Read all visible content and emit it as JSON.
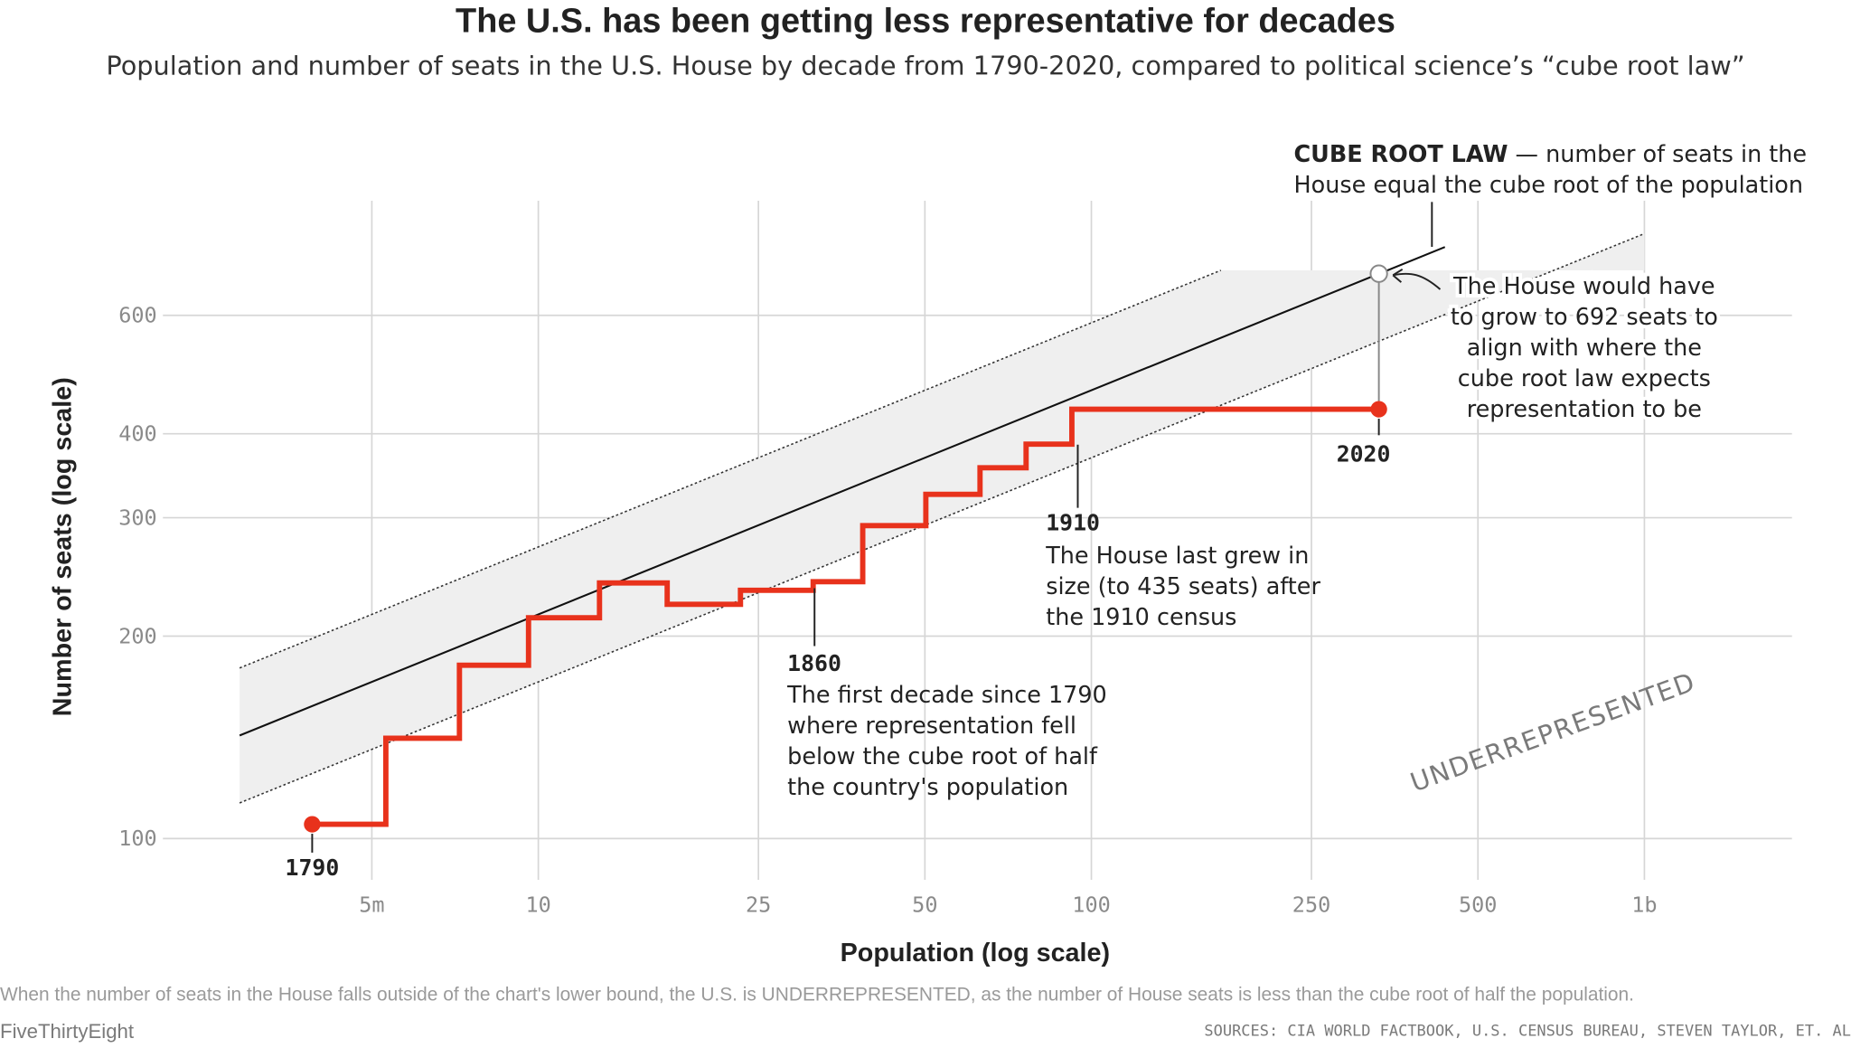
{
  "header": {
    "title": "The U.S. has been getting less representative for decades",
    "subtitle": "Population and number of seats in the U.S. House by decade from 1790-2020, compared to political science’s “cube root law”"
  },
  "chart_data": {
    "type": "line",
    "xlabel": "Population (log scale)",
    "ylabel": "Number of seats (log scale)",
    "x_scale": "log",
    "y_scale": "log",
    "grid": true,
    "x_ticks": [
      {
        "value": 5000000,
        "label": "5m"
      },
      {
        "value": 10000000,
        "label": "10"
      },
      {
        "value": 25000000,
        "label": "25"
      },
      {
        "value": 50000000,
        "label": "50"
      },
      {
        "value": 100000000,
        "label": "100"
      },
      {
        "value": 250000000,
        "label": "250"
      },
      {
        "value": 500000000,
        "label": "500"
      },
      {
        "value": 1000000000,
        "label": "1b"
      }
    ],
    "y_ticks": [
      {
        "value": 100,
        "label": "100"
      },
      {
        "value": 200,
        "label": "200"
      },
      {
        "value": 300,
        "label": "300"
      },
      {
        "value": 400,
        "label": "400"
      },
      {
        "value": 600,
        "label": "600"
      }
    ],
    "series": [
      {
        "x": [
          3900000,
          5300000,
          7200000,
          9600000,
          12900000,
          17100000,
          23200000,
          31400000,
          38600000,
          50200000,
          62900000,
          76200000,
          92200000,
          331000000
        ],
        "y": [
          105,
          141,
          181,
          213,
          240,
          223,
          234,
          241,
          292,
          325,
          356,
          386,
          435,
          435
        ],
        "color": "#e8321c"
      }
    ],
    "cube_root_law": {
      "color": "#111111",
      "band_lower_ratio": 0.7937,
      "band_upper_ratio": 1.26,
      "band_color": "#efefef"
    },
    "highlights": [
      {
        "x": 3900000,
        "y": 105,
        "label": "1790"
      },
      {
        "x": 331000000,
        "y": 435,
        "label": "2020"
      },
      {
        "x": 331000000,
        "y": 692,
        "hollow": true
      }
    ],
    "annotations": {
      "cube_root": {
        "bold": "CUBE ROOT LAW",
        "line1_rest": " — number of seats in the",
        "line2": "House equal the cube root of the population"
      },
      "target": [
        "The House would have",
        "to grow to 692 seats to",
        "align with where the",
        "cube root law expects",
        "representation to be"
      ],
      "y1910": {
        "year": "1910",
        "lines": [
          "The House last grew in",
          "size (to 435 seats) after",
          "the 1910 census"
        ]
      },
      "y1860": {
        "year": "1860",
        "lines": [
          "The first decade since 1790",
          "where representation fell",
          "below the cube root of half",
          "the country's population"
        ]
      },
      "underrepresented": "UNDERREPRESENTED"
    }
  },
  "footer": {
    "note": "When the number of seats in the House falls outside of the chart's lower bound, the U.S. is UNDERREPRESENTED, as the number of House seats is less than the cube root of half the population.",
    "brand": "FiveThirtyEight",
    "sources": "SOURCES: CIA WORLD FACTBOOK, U.S. CENSUS BUREAU, STEVEN TAYLOR, ET. AL"
  }
}
